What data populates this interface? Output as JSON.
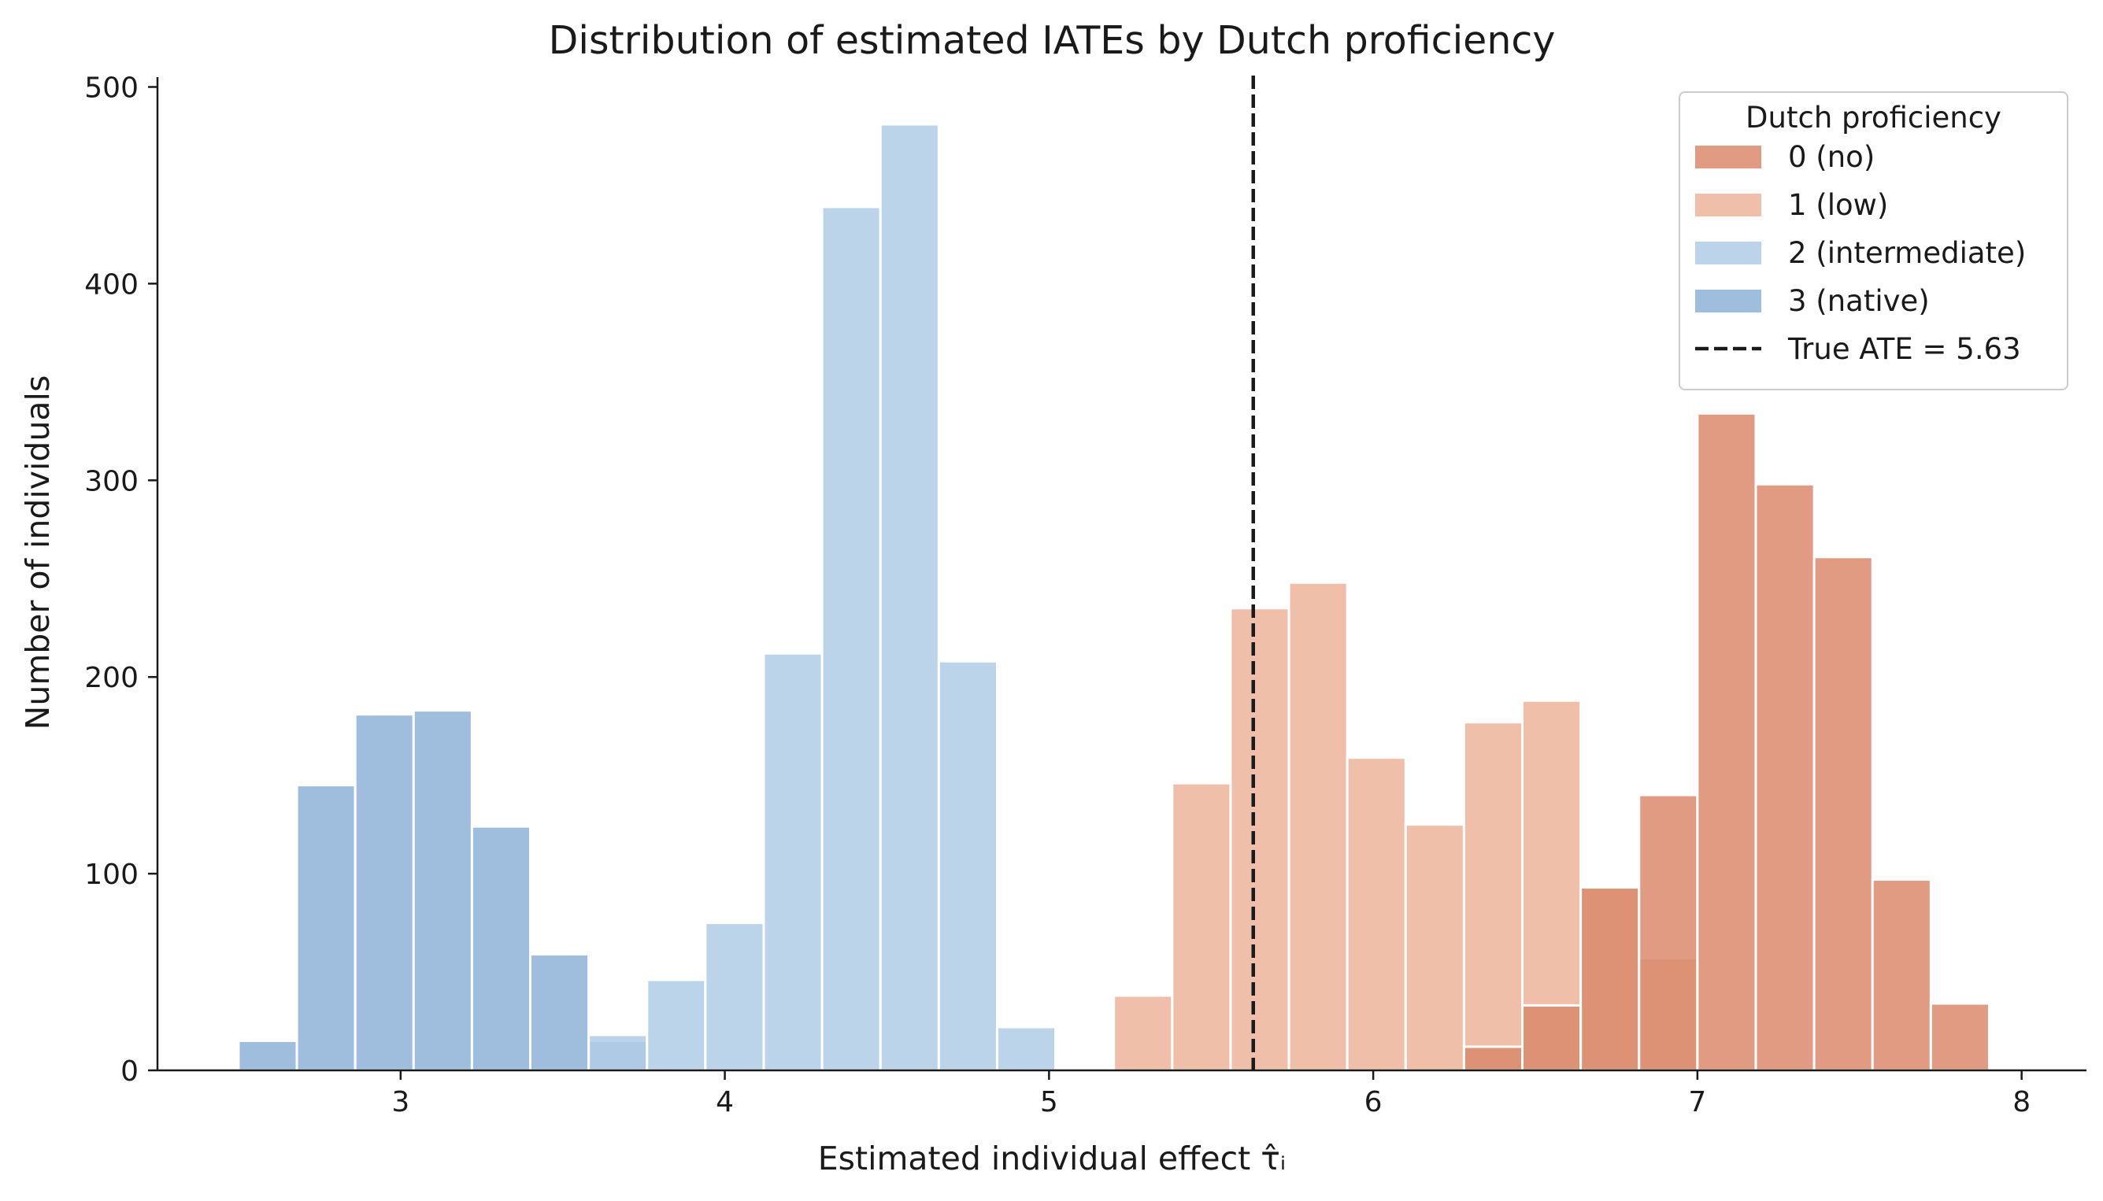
{
  "chart_data": {
    "type": "histogram",
    "title": "Distribution of estimated IATEs by Dutch proficiency",
    "xlabel": "Estimated individual effect τ̂ᵢ",
    "ylabel": "Number of individuals",
    "xlim": [
      2.25,
      8.2
    ],
    "ylim": [
      0,
      505
    ],
    "xticks": [
      3,
      4,
      5,
      6,
      7,
      8
    ],
    "yticks": [
      0,
      100,
      200,
      300,
      400,
      500
    ],
    "bin_width": 0.18,
    "bin_start": 2.5,
    "legend": {
      "title": "Dutch proficiency",
      "position": "upper right"
    },
    "series": [
      {
        "name": "3 (native)",
        "color": "#8eb2d7",
        "bins": [
          {
            "x0": 2.5,
            "count": 15
          },
          {
            "x0": 2.68,
            "count": 145
          },
          {
            "x0": 2.86,
            "count": 181
          },
          {
            "x0": 3.04,
            "count": 183
          },
          {
            "x0": 3.22,
            "count": 124
          },
          {
            "x0": 3.4,
            "count": 59
          },
          {
            "x0": 3.58,
            "count": 15
          }
        ]
      },
      {
        "name": "2 (intermediate)",
        "color": "#b0cde6",
        "bins": [
          {
            "x0": 3.58,
            "count": 18
          },
          {
            "x0": 3.76,
            "count": 46
          },
          {
            "x0": 3.94,
            "count": 75
          },
          {
            "x0": 4.12,
            "count": 212
          },
          {
            "x0": 4.3,
            "count": 439
          },
          {
            "x0": 4.48,
            "count": 481
          },
          {
            "x0": 4.66,
            "count": 208
          },
          {
            "x0": 4.84,
            "count": 22
          }
        ]
      },
      {
        "name": "1 (low)",
        "color": "#ecb49a",
        "bins": [
          {
            "x0": 5.2,
            "count": 38
          },
          {
            "x0": 5.38,
            "count": 146
          },
          {
            "x0": 5.56,
            "count": 235
          },
          {
            "x0": 5.74,
            "count": 248
          },
          {
            "x0": 5.92,
            "count": 159
          },
          {
            "x0": 6.1,
            "count": 125
          },
          {
            "x0": 6.28,
            "count": 177
          },
          {
            "x0": 6.46,
            "count": 188
          },
          {
            "x0": 6.64,
            "count": 93
          },
          {
            "x0": 6.82,
            "count": 57
          }
        ]
      },
      {
        "name": "0 (no)",
        "color": "#db8a6c",
        "bins": [
          {
            "x0": 6.28,
            "count": 12
          },
          {
            "x0": 6.46,
            "count": 33
          },
          {
            "x0": 6.64,
            "count": 93
          },
          {
            "x0": 6.82,
            "count": 140
          },
          {
            "x0": 7.0,
            "count": 334
          },
          {
            "x0": 7.18,
            "count": 298
          },
          {
            "x0": 7.36,
            "count": 261
          },
          {
            "x0": 7.54,
            "count": 97
          },
          {
            "x0": 7.72,
            "count": 34
          }
        ]
      }
    ],
    "reference_line": {
      "label": "True ATE = 5.63",
      "value": 5.63,
      "style": "dashed",
      "color": "#1a1a1a"
    },
    "legend_order": [
      "0 (no)",
      "1 (low)",
      "2 (intermediate)",
      "3 (native)"
    ]
  }
}
